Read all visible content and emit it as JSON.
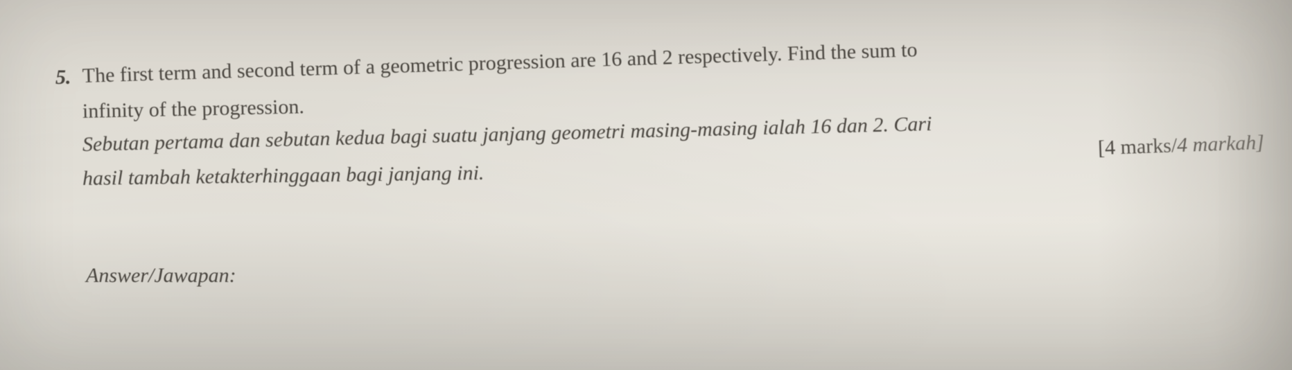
{
  "question": {
    "number": "5.",
    "english_line1": "The first term and second term of a geometric progression are 16 and 2 respectively. Find the sum to",
    "english_line2": "infinity of the progression.",
    "malay_line1": "Sebutan pertama dan sebutan kedua bagi suatu janjang geometri masing-masing ialah 16 dan 2. Cari",
    "malay_line2": "hasil tambah ketakterhinggaan bagi janjang ini.",
    "marks_en": "[4 marks",
    "marks_sep": "/",
    "marks_my": "4 markah]"
  },
  "answer": {
    "label_en": "Answer",
    "sep": "/",
    "label_my": "Jawapan:"
  },
  "styling": {
    "background_color": "#e0ddd5",
    "text_color": "#4a4640",
    "font_family": "Georgia, Times New Roman, serif",
    "body_fontsize": 30,
    "paper_type": "scanned-photograph",
    "blur_amount": 0.5,
    "perspective_skew": "slight-rotation-counterclockwise"
  }
}
